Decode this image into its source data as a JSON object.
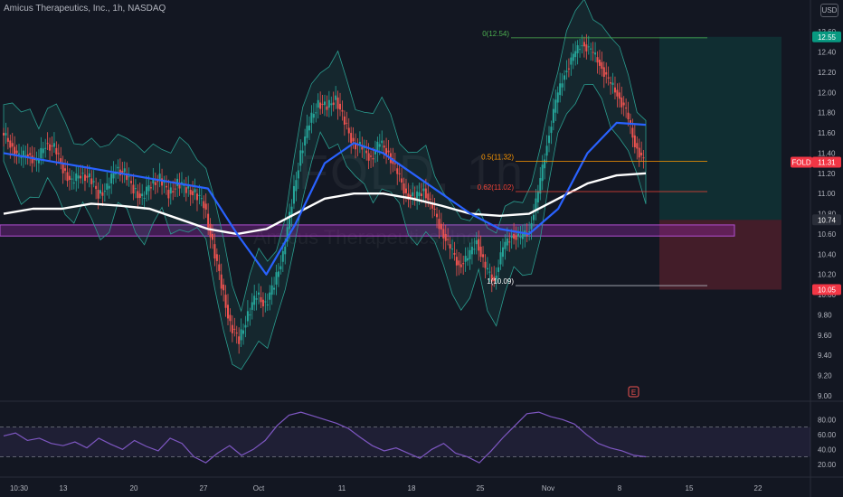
{
  "header": {
    "title": "Amicus Therapeutics, Inc., 1h, NASDAQ"
  },
  "currency": "USD",
  "watermark": {
    "symbol": "FOLD, 1h",
    "name": "Amicus Therapeutics, Inc."
  },
  "colors": {
    "bg": "#131722",
    "up": "#26a69a",
    "down": "#ef5350",
    "ma_blue": "#2962ff",
    "ma_white": "#ffffff",
    "rsi": "#7e57c2",
    "bb": "#2a9d8f",
    "zone": "#9c27b0",
    "fib_top": "#4caf50",
    "fib_mid": "#ff9800",
    "fib_618": "#f44336"
  },
  "chart_data": [
    {
      "type": "line",
      "subtype": "candlestick",
      "title": "Amicus Therapeutics, Inc., 1h, NASDAQ",
      "symbol": "FOLD",
      "ylim": [
        9.0,
        12.7
      ],
      "y_ticks": [
        "12.60",
        "12.40",
        "12.20",
        "12.00",
        "11.80",
        "11.60",
        "11.40",
        "11.20",
        "11.00",
        "10.80",
        "10.60",
        "10.40",
        "10.20",
        "10.00",
        "9.80",
        "9.60",
        "9.40",
        "9.20",
        "9.00"
      ],
      "x_ticks": [
        "10:30",
        "13",
        "20",
        "27",
        "Oct",
        "11",
        "18",
        "25",
        "Nov",
        "8",
        "15",
        "22"
      ],
      "price_path": {
        "dates": [
          "10:30",
          "13",
          "20",
          "27",
          "Oct",
          "11",
          "18",
          "25",
          "Nov",
          "8"
        ],
        "close": [
          11.55,
          11.3,
          11.1,
          10.9,
          9.8,
          11.9,
          11.2,
          10.3,
          11.4,
          12.4
        ]
      },
      "price_close_series": [
        11.6,
        11.5,
        11.35,
        11.4,
        11.3,
        11.5,
        11.45,
        11.25,
        11.1,
        11.2,
        11.15,
        11.0,
        11.05,
        11.25,
        11.2,
        11.05,
        10.95,
        11.1,
        11.15,
        11.0,
        11.1,
        11.05,
        11.0,
        10.9,
        10.5,
        10.1,
        9.7,
        9.55,
        9.8,
        10.0,
        9.9,
        10.1,
        10.4,
        10.9,
        11.4,
        11.7,
        11.9,
        11.85,
        11.95,
        11.7,
        11.5,
        11.45,
        11.35,
        11.5,
        11.4,
        11.2,
        11.0,
        10.95,
        11.05,
        10.85,
        10.65,
        10.45,
        10.3,
        10.35,
        10.55,
        10.25,
        10.15,
        10.45,
        10.6,
        10.55,
        10.65,
        11.0,
        11.5,
        11.9,
        12.2,
        12.35,
        12.5,
        12.4,
        12.3,
        12.1,
        12.0,
        11.8,
        11.5,
        11.31
      ],
      "series": [
        {
          "name": "MA blue",
          "values": [
            11.4,
            11.35,
            11.3,
            11.25,
            11.2,
            11.15,
            11.1,
            11.05,
            10.6,
            10.2,
            10.7,
            11.3,
            11.5,
            11.4,
            11.2,
            11.0,
            10.8,
            10.65,
            10.6,
            10.85,
            11.4,
            11.7,
            11.68
          ]
        },
        {
          "name": "MA white",
          "values": [
            10.8,
            10.85,
            10.85,
            10.9,
            10.88,
            10.85,
            10.75,
            10.65,
            10.6,
            10.65,
            10.8,
            10.95,
            11.0,
            11.0,
            10.95,
            10.88,
            10.8,
            10.78,
            10.8,
            10.95,
            11.1,
            11.18,
            11.2
          ]
        }
      ],
      "levels": {
        "last_price": 11.31,
        "take_profit": 12.55,
        "entry": 10.74,
        "stop": 10.05
      },
      "fibonacci": [
        {
          "label": "0(12.54)",
          "value": 12.54
        },
        {
          "label": "0.5(11.32)",
          "value": 11.32
        },
        {
          "label": "0.62(11.02)",
          "value": 11.02
        },
        {
          "label": "1(10.09)",
          "value": 10.09
        }
      ],
      "zone": [
        10.58,
        10.69
      ],
      "price_labels": {
        "symbol_tag": "FOLD",
        "last": "11.31",
        "target": "12.55",
        "entry": "10.74",
        "stop": "10.05"
      },
      "earnings_marker": "E"
    },
    {
      "type": "line",
      "title": "",
      "ylim": [
        10,
        95
      ],
      "y_ticks": [
        "80.00",
        "60.00",
        "40.00",
        "20.00"
      ],
      "bands": [
        70,
        30
      ],
      "series": [
        {
          "name": "",
          "values": [
            58,
            62,
            52,
            55,
            48,
            45,
            50,
            42,
            55,
            47,
            40,
            52,
            44,
            38,
            55,
            48,
            30,
            22,
            35,
            45,
            32,
            40,
            52,
            72,
            86,
            90,
            85,
            80,
            75,
            68,
            56,
            45,
            38,
            42,
            35,
            28,
            40,
            48,
            35,
            30,
            22,
            38,
            56,
            72,
            88,
            90,
            84,
            80,
            74,
            60,
            48,
            42,
            38,
            32,
            30
          ]
        }
      ]
    }
  ]
}
